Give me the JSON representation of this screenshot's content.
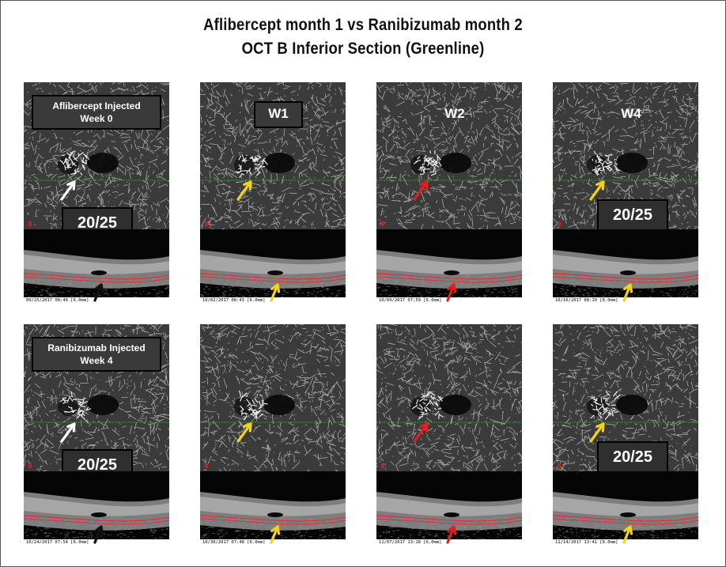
{
  "title_line1": "Aflibercept month 1 vs Ranibizumab month 2",
  "title_line2": "OCT B Inferior Section (Greenline)",
  "colors": {
    "arrow_white": "#ffffff",
    "arrow_yellow": "#f5d21a",
    "arrow_red": "#e01f1f",
    "arrow_black": "#111111",
    "scan_line": "#2aa52a",
    "rpe_line": "#e0303a"
  },
  "rows": [
    {
      "panels": [
        {
          "injection_line1": "Aflibercept Injected",
          "injection_line2": "Week 0",
          "week": "",
          "visual_acuity": "20/25",
          "date": "09/25/2017 08:40 [6.0mm]",
          "angio_arrow": "white",
          "bscan_arrow": "black"
        },
        {
          "injection_line1": "",
          "injection_line2": "",
          "week": "W1",
          "visual_acuity": "",
          "date": "10/02/2017 08:43 [6.0mm]",
          "angio_arrow": "yellow",
          "bscan_arrow": "yellow"
        },
        {
          "injection_line1": "",
          "injection_line2": "",
          "week": "W2",
          "visual_acuity": "",
          "date": "10/09/2017 07:59 [6.0mm]",
          "angio_arrow": "red",
          "bscan_arrow": "red"
        },
        {
          "injection_line1": "",
          "injection_line2": "",
          "week": "W4",
          "visual_acuity": "20/25",
          "date": "10/16/2017 08:10 [6.0mm]",
          "angio_arrow": "yellow",
          "bscan_arrow": "yellow"
        }
      ]
    },
    {
      "panels": [
        {
          "injection_line1": "Ranibizumab Injected",
          "injection_line2": "Week 4",
          "week": "",
          "visual_acuity": "20/25",
          "date": "10/24/2017 07:54 [6.0mm]",
          "angio_arrow": "white",
          "bscan_arrow": "black"
        },
        {
          "injection_line1": "",
          "injection_line2": "",
          "week": "",
          "visual_acuity": "",
          "date": "10/30/2017 07:48 [6.0mm]",
          "angio_arrow": "yellow",
          "bscan_arrow": "yellow"
        },
        {
          "injection_line1": "",
          "injection_line2": "",
          "week": "",
          "visual_acuity": "",
          "date": "11/07/2017 13:18 [6.0mm]",
          "angio_arrow": "red",
          "bscan_arrow": "red"
        },
        {
          "injection_line1": "",
          "injection_line2": "",
          "week": "",
          "visual_acuity": "20/25",
          "date": "11/14/2017 13:41 [6.0mm]",
          "angio_arrow": "yellow",
          "bscan_arrow": "yellow"
        }
      ]
    }
  ]
}
